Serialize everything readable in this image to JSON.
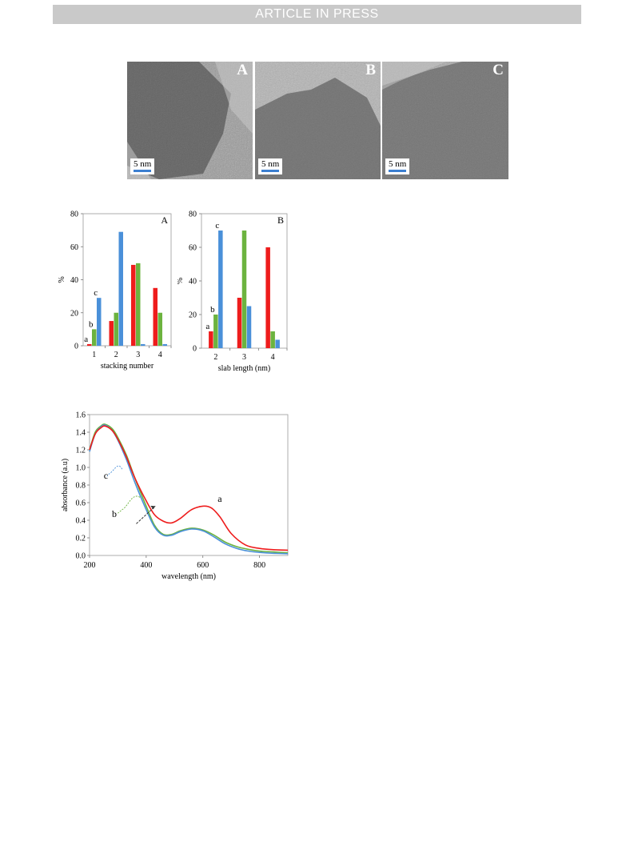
{
  "header": {
    "banner": "ARTICLE IN PRESS"
  },
  "tem_panels": [
    {
      "letter": "A",
      "scale": "5 nm"
    },
    {
      "letter": "B",
      "scale": "5 nm"
    },
    {
      "letter": "C",
      "scale": "5 nm"
    }
  ],
  "colors": {
    "a": "#ee1c1c",
    "b": "#6cb33f",
    "c": "#4a90d9",
    "scale_bar": "#3b7fd0"
  },
  "chart_data": [
    {
      "type": "bar",
      "panel_letter": "A",
      "xlabel": "stacking number",
      "ylabel": "%",
      "categories": [
        "1",
        "2",
        "3",
        "4"
      ],
      "ylim": [
        0,
        80
      ],
      "yticks": [
        0,
        20,
        40,
        60,
        80
      ],
      "series": [
        {
          "name": "a",
          "values": [
            1,
            15,
            49,
            35
          ]
        },
        {
          "name": "b",
          "values": [
            10,
            20,
            50,
            20
          ]
        },
        {
          "name": "c",
          "values": [
            29,
            69,
            1,
            1
          ]
        }
      ]
    },
    {
      "type": "bar",
      "panel_letter": "B",
      "xlabel": "slab length (nm)",
      "ylabel": "%",
      "categories": [
        "2",
        "3",
        "4"
      ],
      "ylim": [
        0,
        80
      ],
      "yticks": [
        0,
        20,
        40,
        60,
        80
      ],
      "series": [
        {
          "name": "a",
          "values": [
            10,
            30,
            60
          ]
        },
        {
          "name": "b",
          "values": [
            20,
            70,
            10
          ]
        },
        {
          "name": "c",
          "values": [
            70,
            25,
            5
          ]
        }
      ]
    },
    {
      "type": "line",
      "xlabel": "wavelength (nm)",
      "ylabel": "absorbance (a.u)",
      "xlim": [
        200,
        900
      ],
      "ylim": [
        0,
        1.6
      ],
      "xticks": [
        200,
        400,
        600,
        800
      ],
      "yticks": [
        0.0,
        0.2,
        0.4,
        0.6,
        0.8,
        1.0,
        1.2,
        1.4,
        1.6
      ],
      "ytick_labels": [
        "0.0",
        "0.2",
        "0.4",
        "0.6",
        "0.8",
        "1.0",
        "1.2",
        "1.4",
        "1.6"
      ],
      "series": [
        {
          "name": "a",
          "points": [
            [
              200,
              1.2
            ],
            [
              220,
              1.38
            ],
            [
              240,
              1.45
            ],
            [
              255,
              1.47
            ],
            [
              280,
              1.42
            ],
            [
              300,
              1.32
            ],
            [
              330,
              1.12
            ],
            [
              360,
              0.88
            ],
            [
              400,
              0.62
            ],
            [
              430,
              0.46
            ],
            [
              460,
              0.39
            ],
            [
              490,
              0.37
            ],
            [
              520,
              0.42
            ],
            [
              560,
              0.52
            ],
            [
              600,
              0.56
            ],
            [
              630,
              0.54
            ],
            [
              660,
              0.44
            ],
            [
              700,
              0.25
            ],
            [
              750,
              0.12
            ],
            [
              800,
              0.08
            ],
            [
              850,
              0.065
            ],
            [
              900,
              0.06
            ]
          ]
        },
        {
          "name": "b",
          "points": [
            [
              200,
              1.2
            ],
            [
              220,
              1.4
            ],
            [
              240,
              1.47
            ],
            [
              255,
              1.49
            ],
            [
              280,
              1.44
            ],
            [
              300,
              1.34
            ],
            [
              330,
              1.14
            ],
            [
              360,
              0.88
            ],
            [
              400,
              0.56
            ],
            [
              430,
              0.34
            ],
            [
              460,
              0.24
            ],
            [
              490,
              0.24
            ],
            [
              520,
              0.28
            ],
            [
              560,
              0.31
            ],
            [
              600,
              0.29
            ],
            [
              640,
              0.23
            ],
            [
              680,
              0.15
            ],
            [
              720,
              0.1
            ],
            [
              760,
              0.07
            ],
            [
              800,
              0.05
            ],
            [
              850,
              0.04
            ],
            [
              900,
              0.03
            ]
          ]
        },
        {
          "name": "c",
          "points": [
            [
              200,
              1.18
            ],
            [
              220,
              1.38
            ],
            [
              240,
              1.46
            ],
            [
              255,
              1.48
            ],
            [
              280,
              1.42
            ],
            [
              300,
              1.31
            ],
            [
              330,
              1.09
            ],
            [
              360,
              0.83
            ],
            [
              400,
              0.52
            ],
            [
              430,
              0.32
            ],
            [
              460,
              0.23
            ],
            [
              490,
              0.23
            ],
            [
              520,
              0.27
            ],
            [
              560,
              0.3
            ],
            [
              600,
              0.28
            ],
            [
              640,
              0.21
            ],
            [
              680,
              0.13
            ],
            [
              720,
              0.08
            ],
            [
              760,
              0.05
            ],
            [
              800,
              0.035
            ],
            [
              850,
              0.025
            ],
            [
              900,
              0.02
            ]
          ]
        }
      ],
      "annotations": [
        {
          "text": "a"
        },
        {
          "text": "b"
        },
        {
          "text": "c"
        }
      ]
    }
  ]
}
